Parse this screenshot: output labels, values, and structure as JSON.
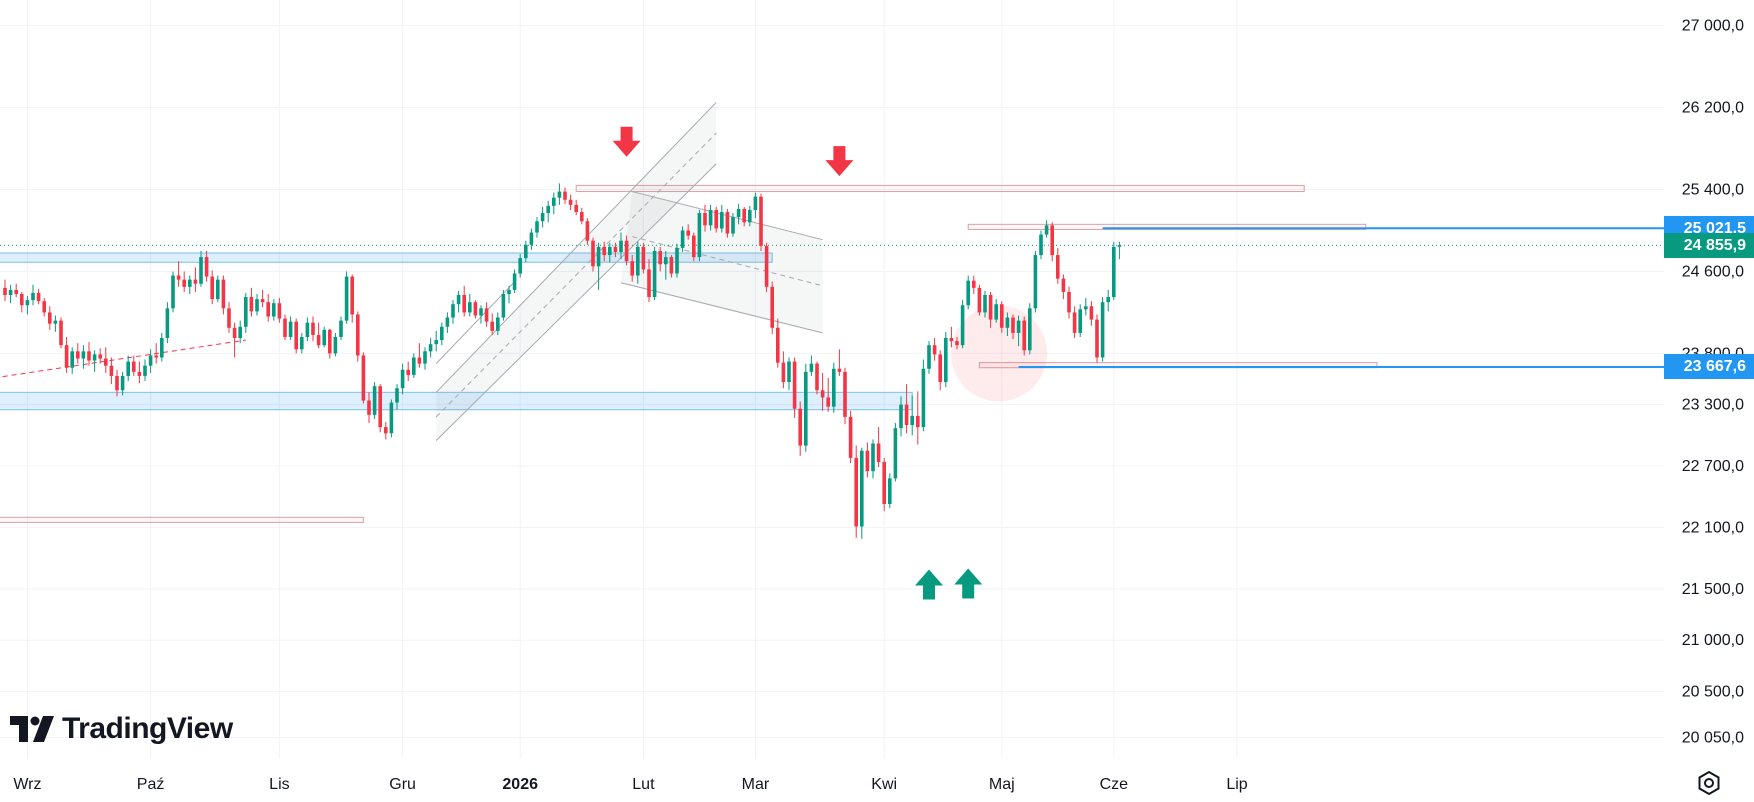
{
  "chart_data": {
    "type": "candlestick",
    "symbol_brand": "TradingView",
    "y_scale": "linear",
    "ylim": [
      19850,
      27250
    ],
    "y_ticks": [
      {
        "value": 27000,
        "label": "27 000,0"
      },
      {
        "value": 26200,
        "label": "26 200,0"
      },
      {
        "value": 25400,
        "label": "25 400,0"
      },
      {
        "value": 24600,
        "label": "24 600,0"
      },
      {
        "value": 23800,
        "label": "23 800,0"
      },
      {
        "value": 23300,
        "label": "23 300,0"
      },
      {
        "value": 22700,
        "label": "22 700,0"
      },
      {
        "value": 22100,
        "label": "22 100,0"
      },
      {
        "value": 21500,
        "label": "21 500,0"
      },
      {
        "value": 21000,
        "label": "21 000,0"
      },
      {
        "value": 20500,
        "label": "20 500,0"
      },
      {
        "value": 20050,
        "label": "20 050,0"
      }
    ],
    "x_ticks": [
      {
        "label": "Wrz",
        "index": 4,
        "bold": false
      },
      {
        "label": "Paź",
        "index": 26,
        "bold": false
      },
      {
        "label": "Lis",
        "index": 49,
        "bold": false
      },
      {
        "label": "Gru",
        "index": 71,
        "bold": false
      },
      {
        "label": "2026",
        "index": 92,
        "bold": true
      },
      {
        "label": "Lut",
        "index": 114,
        "bold": false
      },
      {
        "label": "Mar",
        "index": 134,
        "bold": false
      },
      {
        "label": "Kwi",
        "index": 157,
        "bold": false
      },
      {
        "label": "Maj",
        "index": 178,
        "bold": false
      },
      {
        "label": "Cze",
        "index": 198,
        "bold": false
      },
      {
        "label": "Lip",
        "index": 220,
        "bold": false
      }
    ],
    "price_tags": [
      {
        "value": 25021.5,
        "label": "25 021,5",
        "color": "#2196f3"
      },
      {
        "value": 24855.9,
        "label": "24 855,9",
        "color": "#089981"
      },
      {
        "value": 23667.6,
        "label": "23 667,6",
        "color": "#2196f3"
      }
    ],
    "colors": {
      "up": "#089981",
      "down": "#f23645",
      "grid": "#f0f3fa",
      "level": "#2196f3"
    },
    "ohlc": [
      [
        24440,
        24520,
        24310,
        24370
      ],
      [
        24370,
        24470,
        24290,
        24420
      ],
      [
        24420,
        24480,
        24350,
        24380
      ],
      [
        24380,
        24400,
        24200,
        24270
      ],
      [
        24270,
        24360,
        24180,
        24320
      ],
      [
        24320,
        24470,
        24270,
        24390
      ],
      [
        24390,
        24430,
        24280,
        24310
      ],
      [
        24310,
        24340,
        24160,
        24200
      ],
      [
        24200,
        24260,
        24030,
        24090
      ],
      [
        24090,
        24170,
        24010,
        24120
      ],
      [
        24120,
        24150,
        23850,
        23880
      ],
      [
        23880,
        23960,
        23610,
        23660
      ],
      [
        23660,
        23860,
        23600,
        23820
      ],
      [
        23820,
        23900,
        23700,
        23750
      ],
      [
        23750,
        23880,
        23650,
        23820
      ],
      [
        23820,
        23910,
        23680,
        23730
      ],
      [
        23730,
        23830,
        23620,
        23790
      ],
      [
        23790,
        23850,
        23700,
        23750
      ],
      [
        23750,
        23860,
        23610,
        23680
      ],
      [
        23680,
        23760,
        23500,
        23580
      ],
      [
        23580,
        23640,
        23380,
        23440
      ],
      [
        23440,
        23620,
        23390,
        23580
      ],
      [
        23580,
        23780,
        23530,
        23720
      ],
      [
        23720,
        23780,
        23580,
        23620
      ],
      [
        23620,
        23720,
        23510,
        23580
      ],
      [
        23580,
        23740,
        23530,
        23680
      ],
      [
        23680,
        23840,
        23610,
        23780
      ],
      [
        23780,
        23900,
        23700,
        23760
      ],
      [
        23760,
        24000,
        23720,
        23950
      ],
      [
        23950,
        24300,
        23900,
        24240
      ],
      [
        24240,
        24600,
        24200,
        24560
      ],
      [
        24560,
        24700,
        24450,
        24520
      ],
      [
        24520,
        24600,
        24400,
        24450
      ],
      [
        24450,
        24560,
        24380,
        24520
      ],
      [
        24520,
        24640,
        24400,
        24480
      ],
      [
        24480,
        24800,
        24450,
        24740
      ],
      [
        24740,
        24800,
        24500,
        24550
      ],
      [
        24550,
        24610,
        24280,
        24330
      ],
      [
        24330,
        24560,
        24300,
        24520
      ],
      [
        24520,
        24560,
        24180,
        24240
      ],
      [
        24240,
        24300,
        24000,
        24050
      ],
      [
        24050,
        24100,
        23760,
        23950
      ],
      [
        23950,
        24120,
        23900,
        24060
      ],
      [
        24060,
        24390,
        24000,
        24350
      ],
      [
        24350,
        24440,
        24160,
        24210
      ],
      [
        24210,
        24380,
        24170,
        24330
      ],
      [
        24330,
        24420,
        24250,
        24300
      ],
      [
        24300,
        24380,
        24110,
        24160
      ],
      [
        24160,
        24330,
        24120,
        24290
      ],
      [
        24290,
        24340,
        24100,
        24140
      ],
      [
        24140,
        24180,
        23930,
        23960
      ],
      [
        23960,
        24160,
        23930,
        24110
      ],
      [
        24110,
        24140,
        23800,
        23840
      ],
      [
        23840,
        24000,
        23800,
        23960
      ],
      [
        23960,
        24150,
        23920,
        24100
      ],
      [
        24100,
        24160,
        23920,
        23980
      ],
      [
        23980,
        24100,
        23850,
        23880
      ],
      [
        23880,
        24060,
        23860,
        24030
      ],
      [
        24030,
        24040,
        23750,
        23800
      ],
      [
        23800,
        24000,
        23770,
        23960
      ],
      [
        23960,
        24160,
        23930,
        24120
      ],
      [
        24120,
        24600,
        24090,
        24550
      ],
      [
        24550,
        24570,
        24100,
        24180
      ],
      [
        24180,
        24210,
        23720,
        23780
      ],
      [
        23780,
        23810,
        23310,
        23340
      ],
      [
        23340,
        23420,
        23120,
        23200
      ],
      [
        23200,
        23520,
        23160,
        23480
      ],
      [
        23480,
        23500,
        23030,
        23080
      ],
      [
        23080,
        23130,
        22960,
        23020
      ],
      [
        23020,
        23350,
        22980,
        23320
      ],
      [
        23320,
        23500,
        23250,
        23460
      ],
      [
        23460,
        23700,
        23400,
        23640
      ],
      [
        23640,
        23720,
        23530,
        23590
      ],
      [
        23590,
        23800,
        23560,
        23760
      ],
      [
        23760,
        23900,
        23660,
        23700
      ],
      [
        23700,
        23860,
        23640,
        23820
      ],
      [
        23820,
        23950,
        23760,
        23890
      ],
      [
        23890,
        24020,
        23820,
        23930
      ],
      [
        23930,
        24100,
        23880,
        24060
      ],
      [
        24060,
        24200,
        24000,
        24150
      ],
      [
        24150,
        24320,
        24090,
        24280
      ],
      [
        24280,
        24410,
        24200,
        24370
      ],
      [
        24370,
        24460,
        24160,
        24200
      ],
      [
        24200,
        24380,
        24160,
        24300
      ],
      [
        24300,
        24320,
        24140,
        24170
      ],
      [
        24170,
        24270,
        24090,
        24240
      ],
      [
        24240,
        24300,
        24060,
        24110
      ],
      [
        24110,
        24190,
        23980,
        24020
      ],
      [
        24020,
        24200,
        23980,
        24150
      ],
      [
        24150,
        24420,
        24120,
        24380
      ],
      [
        24380,
        24460,
        24290,
        24420
      ],
      [
        24420,
        24620,
        24390,
        24580
      ],
      [
        24580,
        24770,
        24540,
        24730
      ],
      [
        24730,
        24900,
        24690,
        24860
      ],
      [
        24860,
        25020,
        24810,
        24980
      ],
      [
        24980,
        25130,
        24930,
        25090
      ],
      [
        25090,
        25230,
        25030,
        25170
      ],
      [
        25170,
        25290,
        25080,
        25240
      ],
      [
        25240,
        25370,
        25160,
        25320
      ],
      [
        25320,
        25460,
        25250,
        25380
      ],
      [
        25380,
        25420,
        25260,
        25300
      ],
      [
        25300,
        25350,
        25200,
        25250
      ],
      [
        25250,
        25300,
        25150,
        25180
      ],
      [
        25180,
        25220,
        25060,
        25090
      ],
      [
        25090,
        25120,
        24860,
        24900
      ],
      [
        24900,
        24930,
        24600,
        24650
      ],
      [
        24650,
        24880,
        24420,
        24840
      ],
      [
        24840,
        24890,
        24700,
        24760
      ],
      [
        24760,
        24880,
        24690,
        24840
      ],
      [
        24840,
        24880,
        24740,
        24790
      ],
      [
        24790,
        24980,
        24720,
        24900
      ],
      [
        24900,
        24950,
        24660,
        24700
      ],
      [
        24700,
        24760,
        24500,
        24560
      ],
      [
        24560,
        24890,
        24480,
        24840
      ],
      [
        24840,
        24880,
        24580,
        24620
      ],
      [
        24620,
        24720,
        24300,
        24350
      ],
      [
        24350,
        24840,
        24320,
        24800
      ],
      [
        24800,
        24840,
        24600,
        24670
      ],
      [
        24670,
        24800,
        24520,
        24740
      ],
      [
        24740,
        24760,
        24540,
        24580
      ],
      [
        24580,
        24870,
        24540,
        24830
      ],
      [
        24830,
        25040,
        24790,
        25000
      ],
      [
        25000,
        25060,
        24910,
        24950
      ],
      [
        24950,
        24980,
        24700,
        24740
      ],
      [
        24740,
        25200,
        24700,
        25170
      ],
      [
        25170,
        25250,
        24990,
        25050
      ],
      [
        25050,
        25250,
        25000,
        25200
      ],
      [
        25200,
        25230,
        24980,
        25020
      ],
      [
        25020,
        25250,
        24980,
        25180
      ],
      [
        25180,
        25210,
        24930,
        24970
      ],
      [
        24970,
        25170,
        24940,
        25130
      ],
      [
        25130,
        25260,
        25060,
        25210
      ],
      [
        25210,
        25230,
        25040,
        25080
      ],
      [
        25080,
        25240,
        25040,
        25200
      ],
      [
        25200,
        25370,
        25120,
        25330
      ],
      [
        25330,
        25360,
        24800,
        24850
      ],
      [
        24850,
        24880,
        24400,
        24450
      ],
      [
        24450,
        24500,
        23990,
        24050
      ],
      [
        24050,
        24140,
        23660,
        23710
      ],
      [
        23710,
        23820,
        23460,
        23520
      ],
      [
        23520,
        23760,
        23440,
        23720
      ],
      [
        23720,
        23760,
        23170,
        23260
      ],
      [
        23260,
        23330,
        22800,
        22900
      ],
      [
        22900,
        23700,
        22840,
        23620
      ],
      [
        23620,
        23780,
        23580,
        23700
      ],
      [
        23700,
        23720,
        23400,
        23440
      ],
      [
        23440,
        23610,
        23240,
        23370
      ],
      [
        23370,
        23560,
        23230,
        23280
      ],
      [
        23280,
        23710,
        23220,
        23650
      ],
      [
        23650,
        23840,
        23580,
        23620
      ],
      [
        23620,
        23660,
        23110,
        23180
      ],
      [
        23180,
        23240,
        22730,
        22780
      ],
      [
        22780,
        22900,
        22000,
        22110
      ],
      [
        22110,
        22880,
        21990,
        22850
      ],
      [
        22850,
        22930,
        22590,
        22650
      ],
      [
        22650,
        22960,
        22580,
        22920
      ],
      [
        22920,
        23080,
        22690,
        22740
      ],
      [
        22740,
        22780,
        22260,
        22330
      ],
      [
        22330,
        22630,
        22290,
        22580
      ],
      [
        22580,
        23120,
        22550,
        23070
      ],
      [
        23070,
        23380,
        22990,
        23300
      ],
      [
        23300,
        23500,
        23020,
        23100
      ],
      [
        23100,
        23390,
        23000,
        23190
      ],
      [
        23190,
        23430,
        22910,
        23080
      ],
      [
        23080,
        23740,
        23040,
        23650
      ],
      [
        23650,
        23920,
        23600,
        23880
      ],
      [
        23880,
        23950,
        23730,
        23790
      ],
      [
        23790,
        23830,
        23440,
        23520
      ],
      [
        23520,
        24010,
        23470,
        23950
      ],
      [
        23950,
        24060,
        23860,
        23920
      ],
      [
        23920,
        23960,
        23840,
        23880
      ],
      [
        23880,
        24320,
        23850,
        24270
      ],
      [
        24270,
        24560,
        24230,
        24510
      ],
      [
        24510,
        24560,
        24380,
        24440
      ],
      [
        24440,
        24470,
        24170,
        24200
      ],
      [
        24200,
        24410,
        24150,
        24370
      ],
      [
        24370,
        24400,
        24050,
        24130
      ],
      [
        24130,
        24330,
        24100,
        24280
      ],
      [
        24280,
        24310,
        24000,
        24050
      ],
      [
        24050,
        24200,
        23970,
        24150
      ],
      [
        24150,
        24180,
        23940,
        24000
      ],
      [
        24000,
        24170,
        23870,
        24120
      ],
      [
        24120,
        24160,
        23780,
        23830
      ],
      [
        23830,
        24290,
        23790,
        24240
      ],
      [
        24240,
        24800,
        24200,
        24760
      ],
      [
        24760,
        25000,
        24720,
        24960
      ],
      [
        24960,
        25100,
        24930,
        25050
      ],
      [
        25050,
        25080,
        24700,
        24760
      ],
      [
        24760,
        24830,
        24480,
        24530
      ],
      [
        24530,
        24570,
        24330,
        24400
      ],
      [
        24400,
        24450,
        24140,
        24200
      ],
      [
        24200,
        24260,
        23950,
        24000
      ],
      [
        24000,
        24280,
        23960,
        24230
      ],
      [
        24230,
        24340,
        24170,
        24260
      ],
      [
        24260,
        24310,
        24070,
        24130
      ],
      [
        24130,
        24180,
        23710,
        23760
      ],
      [
        23760,
        24350,
        23720,
        24300
      ],
      [
        24300,
        24420,
        24210,
        24350
      ],
      [
        24350,
        24890,
        24320,
        24840
      ],
      [
        24840,
        24890,
        24720,
        24855.9
      ]
    ]
  }
}
